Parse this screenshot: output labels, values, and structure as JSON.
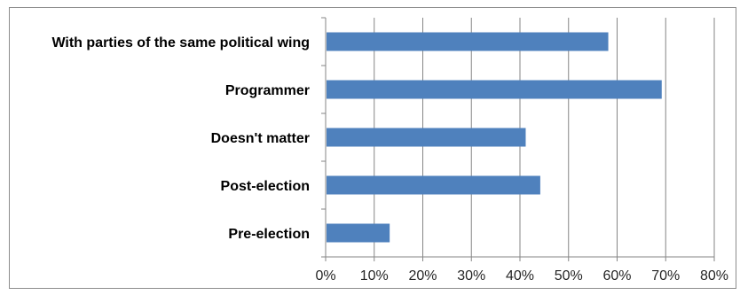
{
  "chart_data": {
    "type": "bar",
    "orientation": "horizontal",
    "categories": [
      "With parties of the same political wing",
      "Programmer",
      "Doesn't matter",
      "Post-election",
      "Pre-election"
    ],
    "values": [
      58,
      69,
      41,
      44,
      13
    ],
    "xlim": [
      0,
      80
    ],
    "xticks": [
      0,
      10,
      20,
      30,
      40,
      50,
      60,
      70,
      80
    ],
    "xtick_labels": [
      "0%",
      "10%",
      "20%",
      "30%",
      "40%",
      "50%",
      "60%",
      "70%",
      "80%"
    ],
    "title": "",
    "xlabel": "",
    "ylabel": "",
    "grid": "vertical major gridlines",
    "legend": "none",
    "bar_color": "#4f81bd",
    "grid_color": "#868686"
  }
}
